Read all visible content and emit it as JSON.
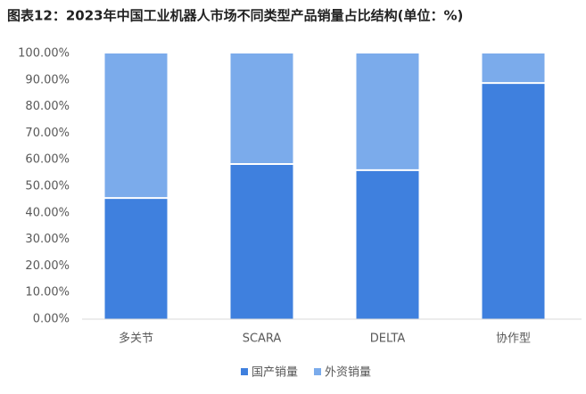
{
  "chart_data": {
    "type": "stacked_bar",
    "title": "图表12：2023年中国工业机器人市场不同类型产品销量占比结构(单位：%)",
    "categories": [
      "多关节",
      "SCARA",
      "DELTA",
      "协作型"
    ],
    "series": [
      {
        "name": "国产销量",
        "color": "#3f80de",
        "values": [
          45.6,
          58.4,
          56.1,
          88.9
        ]
      },
      {
        "name": "外资销量",
        "color": "#7babeb",
        "values": [
          54.4,
          41.6,
          43.9,
          11.1
        ]
      }
    ],
    "ylim": [
      0,
      100
    ],
    "yticks": [
      {
        "value": 0,
        "label": "0.00%"
      },
      {
        "value": 10,
        "label": "10.00%"
      },
      {
        "value": 20,
        "label": "20.00%"
      },
      {
        "value": 30,
        "label": "30.00%"
      },
      {
        "value": 40,
        "label": "40.00%"
      },
      {
        "value": 50,
        "label": "50.00%"
      },
      {
        "value": 60,
        "label": "60.00%"
      },
      {
        "value": 70,
        "label": "70.00%"
      },
      {
        "value": 80,
        "label": "80.00%"
      },
      {
        "value": 90,
        "label": "90.00%"
      },
      {
        "value": 100,
        "label": "100.00%"
      }
    ],
    "legend": "bottom"
  }
}
